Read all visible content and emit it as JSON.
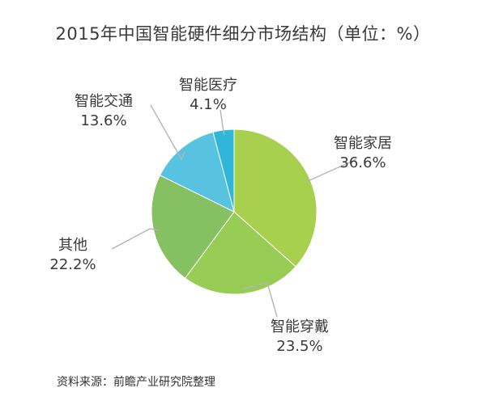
{
  "chart_data": {
    "type": "pie",
    "title": "2015年中国智能硬件细分市场结构（单位：%）",
    "slices": [
      {
        "name": "智能家居",
        "value": 36.6,
        "value_label": "36.6%",
        "color": "#a8cf4e"
      },
      {
        "name": "智能穿戴",
        "value": 23.5,
        "value_label": "23.5%",
        "color": "#98cd55"
      },
      {
        "name": "其他",
        "value": 22.2,
        "value_label": "22.2%",
        "color": "#85c062"
      },
      {
        "name": "智能交通",
        "value": 13.6,
        "value_label": "13.6%",
        "color": "#57c3e1"
      },
      {
        "name": "智能医疗",
        "value": 4.1,
        "value_label": "4.1%",
        "color": "#2fb6d8"
      }
    ],
    "source": "资料来源：前瞻产业研究院整理"
  }
}
